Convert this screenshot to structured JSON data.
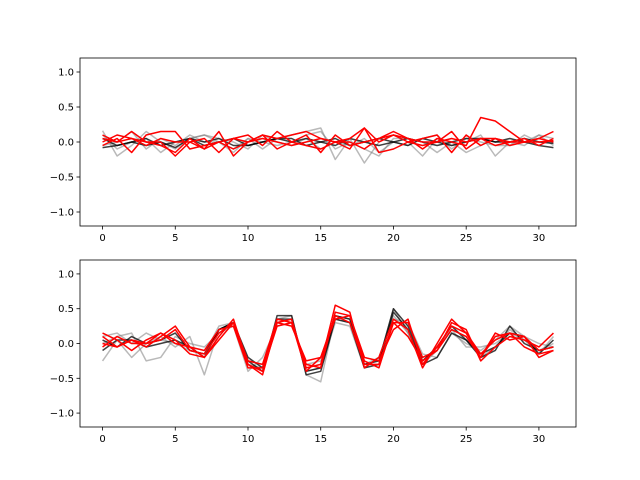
{
  "chart_data": [
    {
      "type": "line",
      "xlim": [
        -1.55,
        32.55
      ],
      "ylim": [
        -1.2,
        1.2
      ],
      "xticks": [
        0,
        5,
        10,
        15,
        20,
        25,
        30
      ],
      "xtick_labels": [
        "0",
        "5",
        "10",
        "15",
        "20",
        "25",
        "30"
      ],
      "yticks": [
        -1.0,
        -0.5,
        0.0,
        0.5,
        1.0
      ],
      "ytick_labels": [
        "−1.0",
        "−0.5",
        "0.0",
        "0.5",
        "1.0"
      ],
      "grid": false,
      "colors": {
        "dark": "#000000",
        "gray": "#808080",
        "red": "#ff0000"
      },
      "series": [
        {
          "color": "gray",
          "values": [
            0.16,
            -0.2,
            -0.05,
            0.15,
            0.0,
            -0.1,
            0.05,
            0.1,
            0.0,
            -0.1,
            0.05,
            -0.1,
            0.05,
            0.1,
            0.15,
            0.2,
            -0.25,
            0.05,
            -0.3,
            0.0,
            0.1,
            0.0,
            -0.2,
            0.05,
            -0.05,
            0.0,
            0.1,
            -0.2,
            0.0,
            0.0,
            0.1,
            0.05
          ]
        },
        {
          "color": "gray",
          "values": [
            -0.05,
            0.0,
            0.15,
            -0.1,
            0.05,
            -0.05,
            0.1,
            0.0,
            0.0,
            -0.15,
            0.05,
            0.0,
            -0.05,
            0.0,
            0.1,
            0.15,
            -0.1,
            0.0,
            -0.1,
            -0.2,
            0.05,
            0.05,
            0.0,
            -0.15,
            0.0,
            -0.15,
            -0.05,
            0.05,
            0.0,
            -0.05,
            0.1,
            -0.05
          ]
        },
        {
          "color": "gray",
          "values": [
            0.1,
            -0.1,
            0.0,
            0.05,
            -0.15,
            0.0,
            0.05,
            0.1,
            0.05,
            0.0,
            -0.1,
            0.1,
            0.0,
            -0.05,
            0.05,
            -0.1,
            0.0,
            -0.05,
            0.05,
            -0.15,
            0.0,
            -0.05,
            0.05,
            0.1,
            -0.1,
            0.05,
            0.0,
            -0.05,
            -0.05,
            0.1,
            0.0,
            0.0
          ]
        },
        {
          "color": "dark",
          "values": [
            -0.08,
            -0.05,
            0.0,
            -0.05,
            0.0,
            -0.08,
            0.05,
            0.0,
            0.05,
            -0.05,
            -0.05,
            0.0,
            0.05,
            0.05,
            -0.05,
            0.0,
            0.05,
            -0.05,
            0.0,
            -0.05,
            0.0,
            0.05,
            0.0,
            -0.05,
            0.0,
            0.05,
            0.05,
            0.0,
            0.0,
            0.05,
            0.0,
            -0.02
          ]
        },
        {
          "color": "dark",
          "values": [
            0.05,
            -0.05,
            0.0,
            0.05,
            -0.05,
            0.0,
            0.05,
            -0.05,
            0.0,
            0.05,
            -0.05,
            0.0,
            0.05,
            0.0,
            0.05,
            0.0,
            -0.05,
            0.05,
            0.0,
            0.05,
            0.0,
            -0.05,
            0.05,
            0.0,
            -0.05,
            0.0,
            0.05,
            0.0,
            0.05,
            0.0,
            -0.05,
            -0.08
          ]
        },
        {
          "color": "red",
          "values": [
            0.1,
            0.0,
            0.15,
            0.0,
            -0.05,
            -0.15,
            0.05,
            -0.1,
            0.15,
            -0.2,
            0.0,
            0.1,
            -0.1,
            0.0,
            0.1,
            -0.15,
            0.1,
            -0.05,
            0.0,
            0.05,
            0.15,
            0.05,
            -0.1,
            0.05,
            0.0,
            -0.05,
            0.35,
            0.3,
            0.15,
            0.0,
            0.05,
            0.0
          ]
        },
        {
          "color": "red",
          "values": [
            -0.05,
            0.05,
            -0.15,
            0.1,
            0.15,
            0.15,
            -0.1,
            -0.05,
            0.0,
            0.05,
            0.0,
            0.1,
            0.05,
            0.1,
            0.15,
            0.05,
            0.0,
            -0.1,
            0.2,
            0.0,
            0.1,
            0.05,
            0.0,
            0.0,
            0.15,
            -0.1,
            0.05,
            0.05,
            -0.05,
            0.0,
            0.05,
            0.15
          ]
        },
        {
          "color": "red",
          "values": [
            0.05,
            0.0,
            0.05,
            -0.05,
            0.05,
            0.0,
            0.0,
            0.05,
            -0.15,
            0.05,
            0.1,
            -0.05,
            0.15,
            0.0,
            -0.05,
            -0.1,
            0.0,
            0.05,
            0.2,
            -0.15,
            -0.1,
            0.0,
            0.05,
            0.1,
            -0.15,
            0.1,
            -0.05,
            0.05,
            0.0,
            0.05,
            -0.05,
            0.05
          ]
        },
        {
          "color": "red",
          "values": [
            0.0,
            0.1,
            0.05,
            0.0,
            0.0,
            -0.2,
            0.0,
            -0.1,
            0.0,
            -0.1,
            0.0,
            0.05,
            0.0,
            -0.05,
            0.0,
            0.05,
            0.0,
            0.0,
            -0.1,
            0.05,
            0.1,
            0.0,
            -0.05,
            0.0,
            0.05,
            0.0,
            0.05,
            -0.05,
            0.0,
            0.0,
            0.0,
            0.02
          ]
        }
      ]
    },
    {
      "type": "line",
      "xlim": [
        -1.55,
        32.55
      ],
      "ylim": [
        -1.2,
        1.2
      ],
      "xticks": [
        0,
        5,
        10,
        15,
        20,
        25,
        30
      ],
      "xtick_labels": [
        "0",
        "5",
        "10",
        "15",
        "20",
        "25",
        "30"
      ],
      "yticks": [
        -1.0,
        -0.5,
        0.0,
        0.5,
        1.0
      ],
      "ytick_labels": [
        "−1.0",
        "−0.5",
        "0.0",
        "0.5",
        "1.0"
      ],
      "grid": false,
      "colors": {
        "dark": "#000000",
        "gray": "#808080",
        "red": "#ff0000"
      },
      "series": [
        {
          "color": "gray",
          "values": [
            -0.25,
            0.05,
            -0.2,
            0.0,
            0.1,
            -0.05,
            0.1,
            -0.45,
            0.2,
            0.3,
            -0.3,
            -0.35,
            0.35,
            0.4,
            -0.45,
            -0.55,
            0.4,
            0.35,
            -0.3,
            -0.2,
            0.4,
            0.15,
            -0.3,
            -0.1,
            0.2,
            0.1,
            -0.2,
            -0.05,
            0.2,
            0.05,
            -0.1,
            0.0
          ]
        },
        {
          "color": "gray",
          "values": [
            0.1,
            0.15,
            0.0,
            0.15,
            0.05,
            0.0,
            -0.1,
            -0.15,
            0.25,
            0.3,
            -0.25,
            -0.3,
            0.3,
            0.35,
            -0.4,
            -0.35,
            0.3,
            0.25,
            -0.35,
            -0.2,
            0.35,
            0.3,
            -0.15,
            -0.2,
            0.15,
            0.0,
            -0.1,
            0.05,
            0.25,
            0.1,
            0.0,
            -0.05
          ]
        },
        {
          "color": "gray",
          "values": [
            0.0,
            0.1,
            0.15,
            -0.25,
            -0.2,
            0.1,
            0.0,
            -0.05,
            0.15,
            0.25,
            -0.4,
            -0.2,
            0.25,
            0.3,
            -0.3,
            -0.25,
            0.35,
            0.3,
            -0.2,
            -0.25,
            0.5,
            0.15,
            -0.25,
            -0.05,
            0.2,
            -0.05,
            -0.05,
            0.0,
            0.15,
            0.05,
            -0.15,
            0.1
          ]
        },
        {
          "color": "dark",
          "values": [
            -0.1,
            0.05,
            0.05,
            -0.05,
            0.0,
            0.05,
            -0.05,
            -0.2,
            0.2,
            0.3,
            -0.25,
            -0.4,
            0.4,
            0.4,
            -0.45,
            -0.4,
            0.35,
            0.3,
            -0.35,
            -0.3,
            0.45,
            0.2,
            -0.3,
            -0.2,
            0.15,
            0.05,
            -0.2,
            -0.1,
            0.25,
            0.0,
            -0.1,
            -0.05
          ]
        },
        {
          "color": "dark",
          "values": [
            0.05,
            -0.05,
            0.1,
            0.0,
            0.05,
            0.15,
            -0.1,
            -0.15,
            0.2,
            0.3,
            -0.2,
            -0.35,
            0.35,
            0.35,
            -0.4,
            -0.35,
            0.4,
            0.35,
            -0.3,
            -0.25,
            0.5,
            0.25,
            -0.25,
            -0.05,
            0.25,
            0.05,
            -0.15,
            -0.05,
            0.15,
            0.1,
            -0.15,
            0.05
          ]
        },
        {
          "color": "red",
          "values": [
            0.15,
            0.05,
            -0.1,
            0.05,
            0.15,
            0.05,
            -0.15,
            -0.2,
            0.1,
            0.35,
            -0.3,
            -0.45,
            0.3,
            0.35,
            -0.35,
            -0.3,
            0.55,
            0.45,
            -0.35,
            -0.2,
            0.35,
            0.2,
            -0.35,
            0.0,
            0.35,
            0.15,
            -0.2,
            0.1,
            0.15,
            -0.05,
            -0.15,
            -0.1
          ]
        },
        {
          "color": "red",
          "values": [
            0.1,
            -0.05,
            0.05,
            -0.05,
            0.1,
            0.25,
            -0.05,
            -0.2,
            0.05,
            0.3,
            -0.25,
            -0.3,
            0.35,
            0.3,
            -0.4,
            -0.2,
            0.35,
            0.4,
            -0.25,
            -0.35,
            0.3,
            0.3,
            -0.2,
            -0.1,
            0.3,
            0.2,
            -0.25,
            -0.05,
            0.1,
            0.05,
            -0.05,
            0.15
          ]
        },
        {
          "color": "red",
          "values": [
            -0.05,
            0.1,
            0.0,
            0.0,
            0.05,
            0.2,
            -0.1,
            -0.15,
            0.15,
            0.3,
            -0.3,
            -0.4,
            0.25,
            0.3,
            -0.3,
            -0.35,
            0.45,
            0.4,
            -0.2,
            -0.25,
            0.2,
            0.35,
            -0.3,
            -0.05,
            0.25,
            0.15,
            -0.15,
            0.05,
            0.15,
            0.1,
            -0.2,
            -0.1
          ]
        },
        {
          "color": "red",
          "values": [
            0.0,
            -0.05,
            0.05,
            0.0,
            0.15,
            0.0,
            -0.05,
            -0.1,
            0.2,
            0.25,
            -0.35,
            -0.35,
            0.3,
            0.25,
            -0.25,
            -0.2,
            0.4,
            0.3,
            -0.3,
            -0.3,
            0.3,
            0.1,
            -0.25,
            -0.1,
            0.2,
            0.1,
            -0.2,
            0.15,
            0.05,
            0.1,
            -0.1,
            -0.05
          ]
        }
      ]
    }
  ]
}
